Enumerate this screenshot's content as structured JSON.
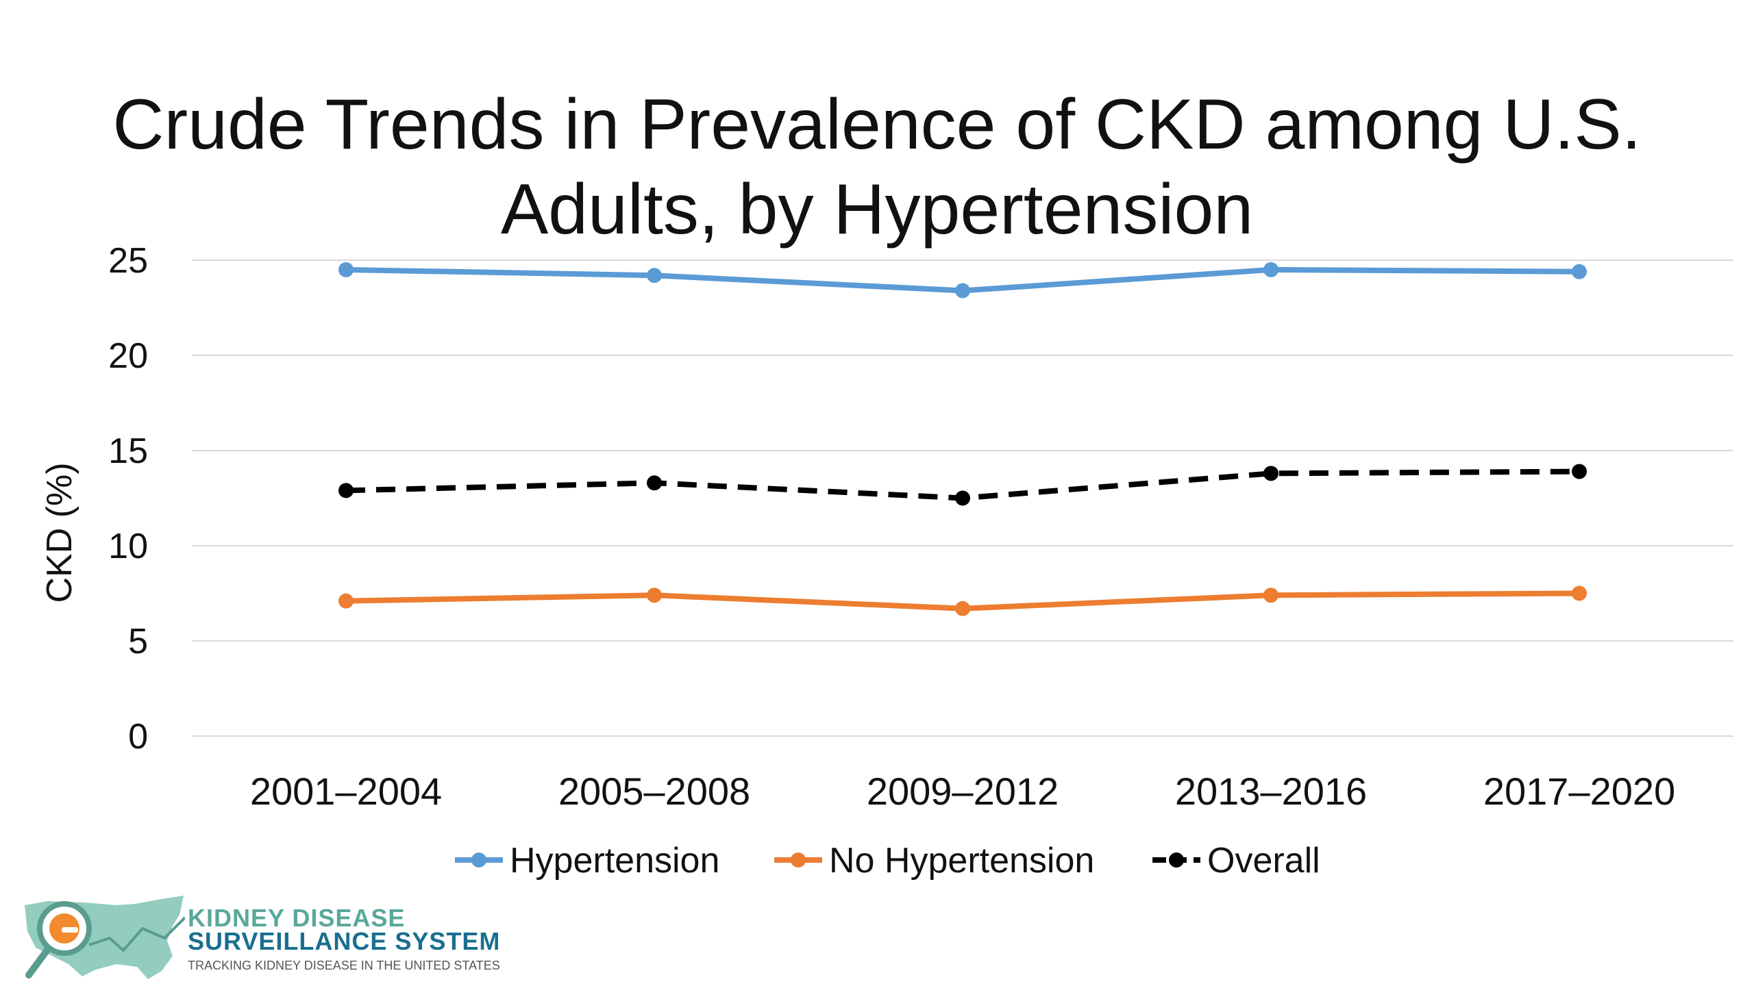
{
  "chart_data": {
    "type": "line",
    "title_lines": [
      "Crude Trends in Prevalence of CKD among U.S.",
      "Adults, by Hypertension"
    ],
    "ylabel": "CKD (%)",
    "xlabel": "",
    "ylim": [
      0,
      25
    ],
    "yticks": [
      "0",
      "5",
      "10",
      "15",
      "20",
      "25"
    ],
    "categories": [
      "2001–2004",
      "2005–2008",
      "2009–2012",
      "2013–2016",
      "2017–2020"
    ],
    "grid": true,
    "legend_position": "bottom",
    "series": [
      {
        "name": "Hypertension",
        "color": "#5b9bd5",
        "style": "solid",
        "values": [
          24.5,
          24.2,
          23.4,
          24.5,
          24.4
        ]
      },
      {
        "name": "No Hypertension",
        "color": "#ed7d31",
        "style": "solid",
        "values": [
          7.1,
          7.4,
          6.7,
          7.4,
          7.5
        ]
      },
      {
        "name": "Overall",
        "color": "#000000",
        "style": "dashed",
        "values": [
          12.9,
          13.3,
          12.5,
          13.8,
          13.9
        ]
      }
    ]
  },
  "logo": {
    "line1": "KIDNEY DISEASE",
    "line2": "SURVEILLANCE SYSTEM",
    "line3": "TRACKING KIDNEY DISEASE IN THE UNITED STATES"
  }
}
